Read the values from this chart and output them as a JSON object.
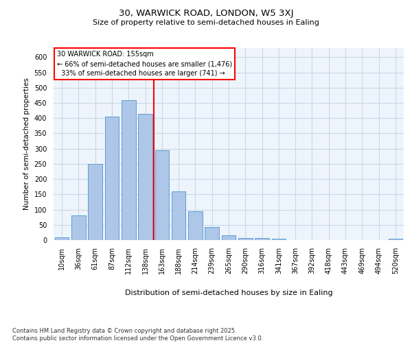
{
  "title1": "30, WARWICK ROAD, LONDON, W5 3XJ",
  "title2": "Size of property relative to semi-detached houses in Ealing",
  "xlabel": "Distribution of semi-detached houses by size in Ealing",
  "ylabel": "Number of semi-detached properties",
  "categories": [
    "10sqm",
    "36sqm",
    "61sqm",
    "87sqm",
    "112sqm",
    "138sqm",
    "163sqm",
    "188sqm",
    "214sqm",
    "239sqm",
    "265sqm",
    "290sqm",
    "316sqm",
    "341sqm",
    "367sqm",
    "392sqm",
    "418sqm",
    "443sqm",
    "469sqm",
    "494sqm",
    "520sqm"
  ],
  "values": [
    8,
    80,
    250,
    405,
    460,
    415,
    295,
    160,
    95,
    42,
    16,
    6,
    6,
    4,
    1,
    1,
    0,
    0,
    0,
    0,
    4
  ],
  "bar_color": "#aec6e8",
  "bar_edge_color": "#5a9fd4",
  "vline_color": "red",
  "property_label": "30 WARWICK ROAD: 155sqm",
  "smaller_pct": 66,
  "smaller_count": 1476,
  "larger_pct": 33,
  "larger_count": 741,
  "ylim": [
    0,
    630
  ],
  "yticks": [
    0,
    50,
    100,
    150,
    200,
    250,
    300,
    350,
    400,
    450,
    500,
    550,
    600
  ],
  "grid_color": "#c8d8e8",
  "bg_color": "#eef4fb",
  "footer1": "Contains HM Land Registry data © Crown copyright and database right 2025.",
  "footer2": "Contains public sector information licensed under the Open Government Licence v3.0."
}
